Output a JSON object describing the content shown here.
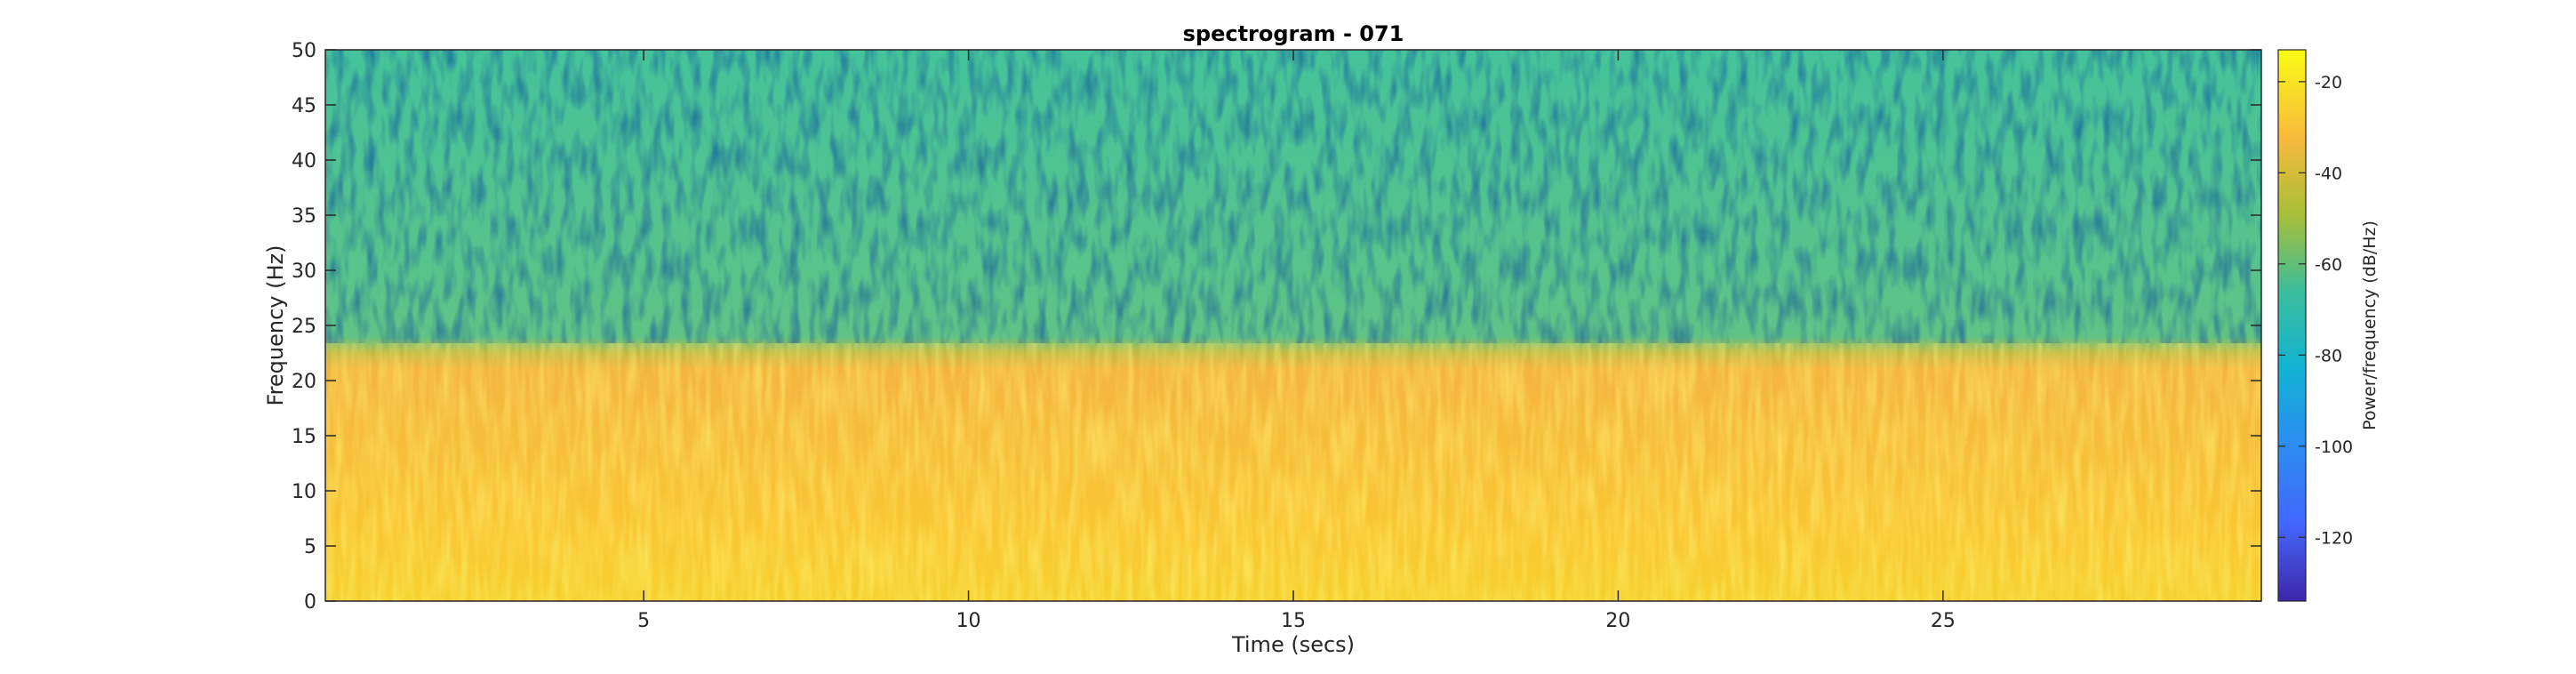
{
  "chart_data": {
    "type": "heatmap",
    "title": "spectrogram - 071",
    "xlabel": "Time (secs)",
    "ylabel": "Frequency (Hz)",
    "xlim": [
      0.1,
      29.9
    ],
    "ylim": [
      0,
      50
    ],
    "xticks": [
      5,
      10,
      15,
      20,
      25
    ],
    "yticks": [
      0,
      5,
      10,
      15,
      20,
      25,
      30,
      35,
      40,
      45,
      50
    ],
    "colorbar": {
      "label": "Power/frequency (dB/Hz)",
      "range": [
        -134,
        -13
      ],
      "ticks": [
        -20,
        -40,
        -60,
        -80,
        -100,
        -120
      ],
      "colormap": "parula"
    },
    "bands": [
      {
        "freq_range": [
          0,
          22
        ],
        "power_db_approx": -33
      },
      {
        "freq_range": [
          22,
          50
        ],
        "power_db_approx": -62
      }
    ],
    "grid": false,
    "legend": "none"
  }
}
